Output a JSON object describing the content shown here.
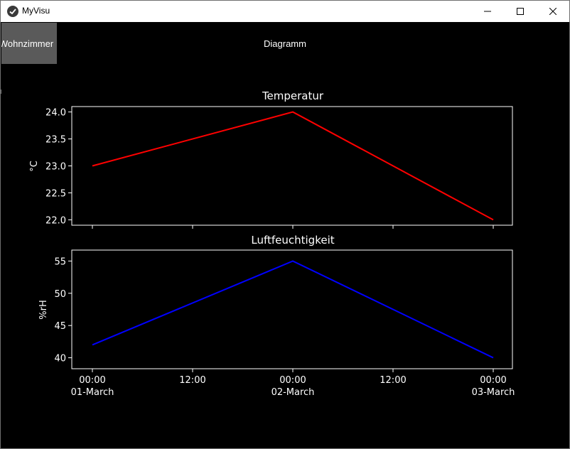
{
  "window": {
    "title": "MyVisu",
    "app_icon": "kivy-logo-icon",
    "controls": [
      "minimize-icon",
      "maximize-icon",
      "close-icon"
    ]
  },
  "toolbar": {
    "room_button": "Wohnzimmer",
    "tab_label": "Diagramm"
  },
  "colors": {
    "background": "#000000",
    "foreground": "#ffffff",
    "temperature_line": "#ff0000",
    "humidity_line": "#0000ff",
    "button_bg": "#5a5a5a"
  },
  "chart_data": [
    {
      "type": "line",
      "title": "Temperatur",
      "xlabel": "",
      "ylabel": "°C",
      "x": [
        "01-March 00:00",
        "02-March 00:00",
        "03-March 00:00"
      ],
      "series": [
        {
          "values": [
            23.0,
            24.0,
            22.0
          ]
        }
      ],
      "ylim": [
        21.9,
        24.1
      ],
      "yticks": [
        "22.0",
        "22.5",
        "23.0",
        "23.5",
        "24.0"
      ],
      "grid": false
    },
    {
      "type": "line",
      "title": "Luftfeuchtigkeit",
      "xlabel": "",
      "ylabel": "%rH",
      "x": [
        "01-March 00:00",
        "02-March 00:00",
        "03-March 00:00"
      ],
      "series": [
        {
          "values": [
            42,
            55,
            40
          ]
        }
      ],
      "ylim": [
        38.3,
        56.7
      ],
      "yticks": [
        "40",
        "45",
        "50",
        "55"
      ],
      "grid": false
    }
  ],
  "x_axis": {
    "tick_times": [
      "00:00",
      "12:00",
      "00:00",
      "12:00",
      "00:00"
    ],
    "tick_dates": [
      "01-March",
      "",
      "02-March",
      "",
      "03-March"
    ]
  }
}
